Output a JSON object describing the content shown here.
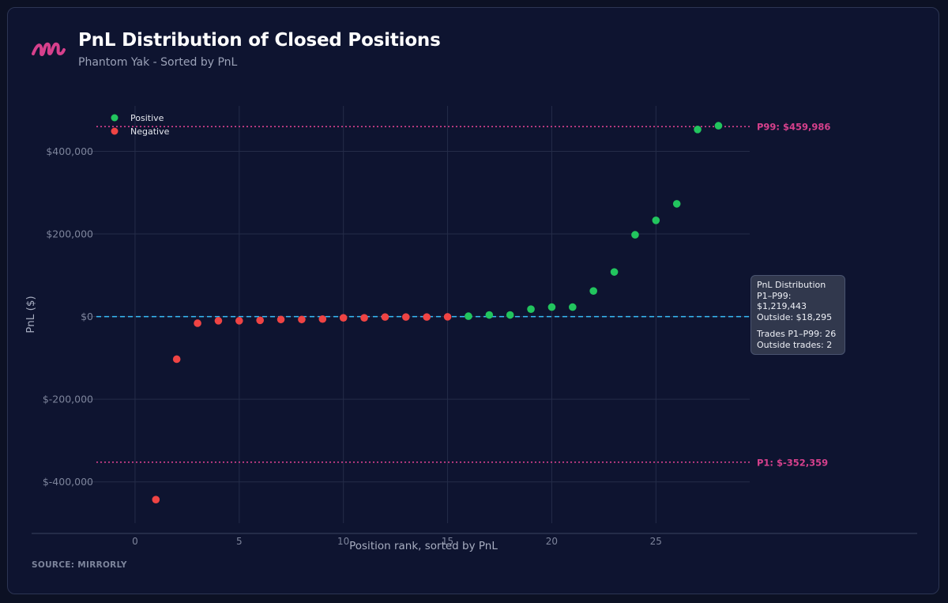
{
  "header": {
    "title": "PnL Distribution of Closed Positions",
    "subtitle": "Phantom Yak - Sorted by PnL"
  },
  "footer": {
    "source": "SOURCE: MIRRORLY"
  },
  "colors": {
    "background": "#0e1430",
    "positive": "#22c55e",
    "negative": "#ef4444",
    "percentile_line": "#d6408c",
    "zero_line": "#38bdf8",
    "logo": "#d6408c"
  },
  "icons": {
    "logo": "mirrorly-logo-icon"
  },
  "tooltip": {
    "heading": "PnL Distribution",
    "range_total": "P1–P99: $1,219,443",
    "outside_total": "Outside: $18,295",
    "range_trades": "Trades P1–P99: 26",
    "outside_trades": "Outside trades: 2"
  },
  "chart_data": {
    "type": "scatter",
    "title": "PnL Distribution of Closed Positions",
    "subtitle": "Phantom Yak - Sorted by PnL",
    "xlabel": "Position rank, sorted by PnL",
    "ylabel": "PnL ($)",
    "xlim": [
      -2.5,
      29.5
    ],
    "ylim": [
      -500000,
      510000
    ],
    "x_ticks": [
      0,
      5,
      10,
      15,
      20,
      25
    ],
    "y_ticks": [
      400000,
      200000,
      0,
      -200000,
      -400000
    ],
    "y_tick_labels": [
      "$400,000",
      "$200,000",
      "$0",
      "$-200,000",
      "$-400,000"
    ],
    "grid": true,
    "legend_position": "top-left",
    "series": [
      {
        "name": "Positive",
        "color": "#22c55e",
        "x": [
          16,
          17,
          18,
          19,
          20,
          21,
          22,
          23,
          24,
          25,
          26,
          27,
          28
        ],
        "y": [
          1000,
          4000,
          4000,
          18000,
          23000,
          23000,
          62000,
          108000,
          198000,
          233000,
          273000,
          453000,
          462000
        ]
      },
      {
        "name": "Negative",
        "color": "#ef4444",
        "x": [
          1,
          2,
          3,
          4,
          5,
          6,
          7,
          8,
          9,
          10,
          11,
          12,
          13,
          14,
          15
        ],
        "y": [
          -443000,
          -103000,
          -16000,
          -10000,
          -10000,
          -9000,
          -7000,
          -7000,
          -6000,
          -3000,
          -3000,
          -1000,
          -1000,
          -1000,
          -500
        ]
      }
    ],
    "reference_lines": [
      {
        "label": "P99: $459,986",
        "y": 459986,
        "style": "dotted",
        "color": "#d6408c"
      },
      {
        "label": "P1: $-352,359",
        "y": -352359,
        "style": "dotted",
        "color": "#d6408c"
      },
      {
        "label": "",
        "y": 0,
        "style": "dashed",
        "color": "#38bdf8"
      }
    ]
  }
}
